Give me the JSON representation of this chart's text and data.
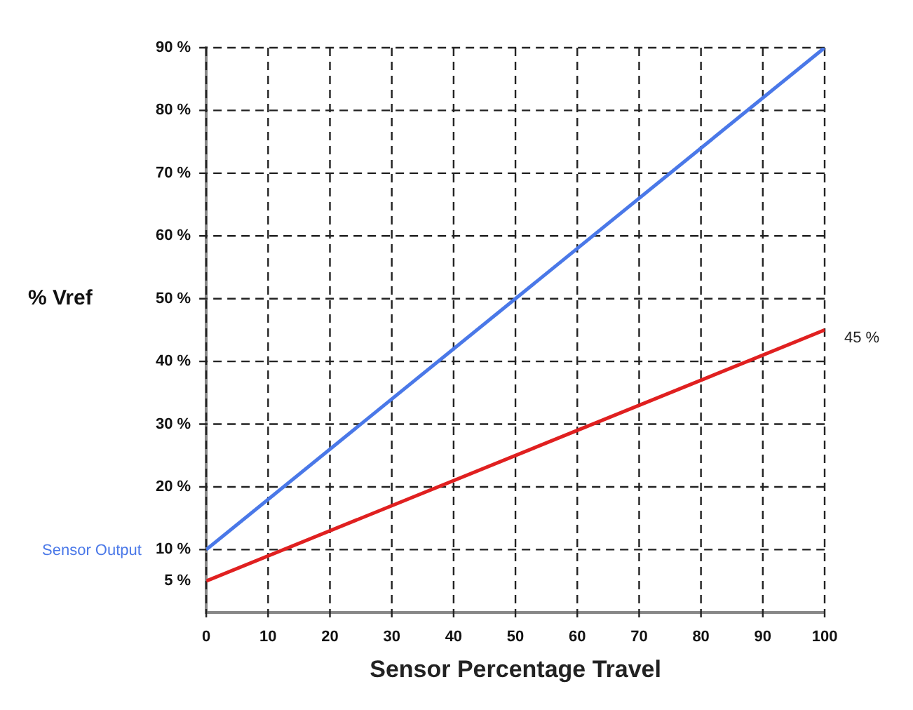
{
  "chart_data": {
    "type": "line",
    "xlabel": "Sensor Percentage Travel",
    "ylabel": "% Vref",
    "x": [
      0,
      100
    ],
    "series": [
      {
        "name": "Sensor Output",
        "color": "#4a78e8",
        "values": [
          10,
          90
        ]
      },
      {
        "color": "#e02020",
        "values": [
          5,
          45
        ]
      }
    ],
    "xlim": [
      0,
      100
    ],
    "xticks": [
      0,
      10,
      20,
      30,
      40,
      50,
      60,
      70,
      80,
      90,
      100
    ],
    "ylim": [
      0,
      90
    ],
    "yticks": [
      {
        "value": 5,
        "label": "5 %"
      },
      {
        "value": 10,
        "label": "10 %"
      },
      {
        "value": 20,
        "label": "20 %"
      },
      {
        "value": 30,
        "label": "30 %"
      },
      {
        "value": 40,
        "label": "40 %"
      },
      {
        "value": 50,
        "label": "50 %"
      },
      {
        "value": 60,
        "label": "60 %"
      },
      {
        "value": 70,
        "label": "70 %"
      },
      {
        "value": 80,
        "label": "80 %"
      },
      {
        "value": 90,
        "label": "90 %"
      }
    ],
    "annotations": [
      {
        "text": "45 %",
        "x": 100,
        "y": 45
      }
    ],
    "grid": true,
    "legend": false,
    "marker": "none",
    "line_style": "solid"
  }
}
